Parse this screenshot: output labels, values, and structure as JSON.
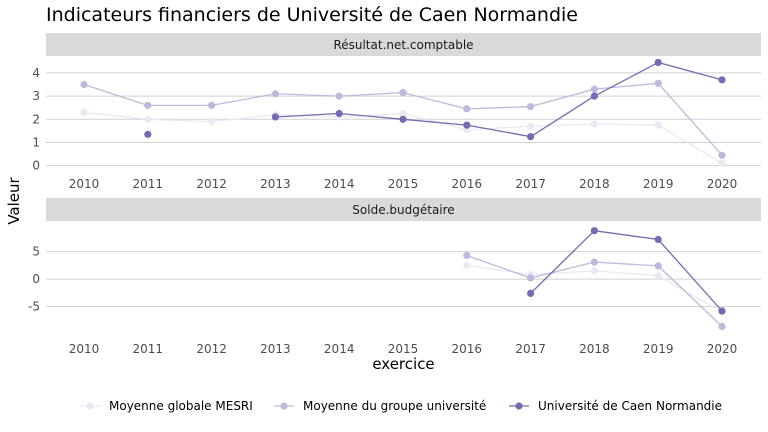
{
  "title": "Indicateurs financiers de Université de Caen Normandie",
  "chart_data": {
    "type": "line",
    "title": "Indicateurs financiers de Université de Caen Normandie",
    "xlabel": "exercice",
    "ylabel": "Valeur",
    "x": [
      "2010",
      "2011",
      "2012",
      "2013",
      "2014",
      "2015",
      "2016",
      "2017",
      "2018",
      "2019",
      "2020"
    ],
    "legend_position": "bottom",
    "grid": true,
    "panels": [
      {
        "name": "Résultat.net.comptable",
        "ylim": [
          -0.1,
          4.6
        ],
        "yticks": [
          0,
          1,
          2,
          3,
          4
        ],
        "ytick_labels": [
          "0",
          "1",
          "2",
          "3",
          "4"
        ],
        "series": [
          {
            "name": "Moyenne globale MESRI",
            "color": "#ebe8f3",
            "values": [
              2.3,
              2.0,
              1.9,
              2.2,
              2.1,
              2.25,
              1.55,
              1.7,
              1.8,
              1.75,
              0.1
            ]
          },
          {
            "name": "Moyenne du groupe université",
            "color": "#bcbadc",
            "values": [
              3.5,
              2.6,
              2.6,
              3.1,
              3.0,
              3.15,
              2.45,
              2.55,
              3.3,
              3.55,
              0.45
            ]
          },
          {
            "name": "Université de Caen Normandie",
            "color": "#756bb1",
            "values": [
              null,
              1.35,
              null,
              2.1,
              2.25,
              2.0,
              1.75,
              1.25,
              3.0,
              4.45,
              3.7
            ]
          }
        ]
      },
      {
        "name": "Solde.budgétaire",
        "ylim": [
          -9.8,
          10.2
        ],
        "yticks": [
          -5,
          0,
          5
        ],
        "ytick_labels": [
          "-5",
          "0",
          "5"
        ],
        "series": [
          {
            "name": "Moyenne globale MESRI",
            "color": "#ebe8f3",
            "values": [
              null,
              null,
              null,
              null,
              null,
              null,
              2.5,
              0.8,
              1.5,
              0.6,
              -6.0
            ]
          },
          {
            "name": "Moyenne du groupe université",
            "color": "#bcbadc",
            "values": [
              null,
              null,
              null,
              null,
              null,
              null,
              4.3,
              0.2,
              3.1,
              2.4,
              -8.6
            ]
          },
          {
            "name": "Université de Caen Normandie",
            "color": "#756bb1",
            "values": [
              null,
              null,
              null,
              null,
              null,
              null,
              null,
              -2.6,
              8.8,
              7.2,
              -5.8
            ]
          }
        ]
      }
    ]
  }
}
